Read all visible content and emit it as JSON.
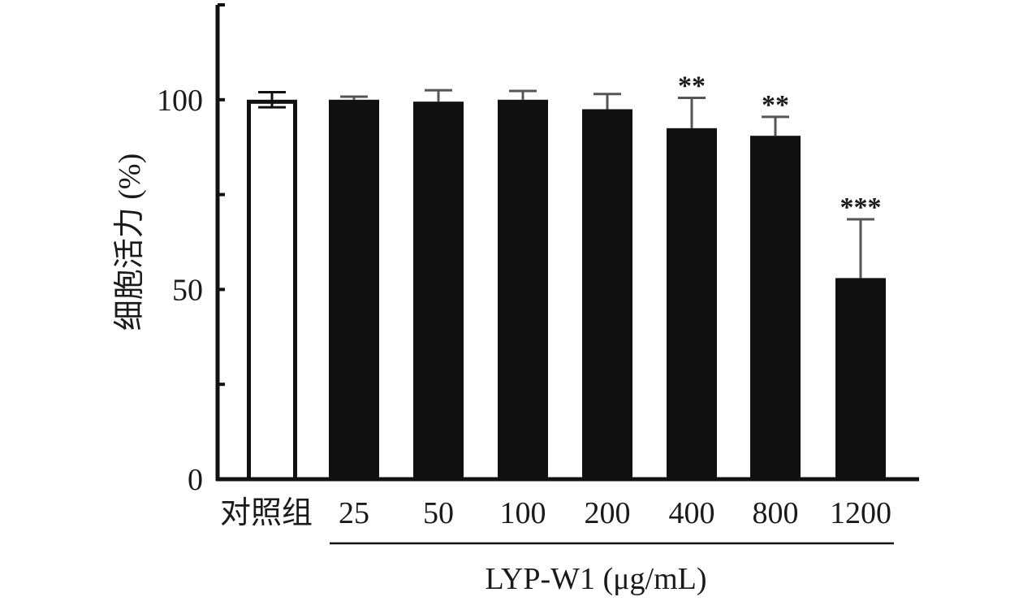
{
  "chart_data": {
    "type": "bar",
    "categories": [
      "对照组",
      "25",
      "50",
      "100",
      "200",
      "400",
      "800",
      "1200"
    ],
    "values": [
      100,
      100,
      99.5,
      100,
      97.5,
      92.5,
      90.5,
      53
    ],
    "errors": [
      2,
      0.8,
      3,
      2.3,
      4,
      8,
      5,
      15.5
    ],
    "significance": [
      "",
      "",
      "",
      "",
      "",
      "**",
      "**",
      "***"
    ],
    "control_index": 0,
    "ylabel": "细胞活力 (%)",
    "group_label": "LYP-W1 (μg/mL)",
    "yticks": [
      0,
      50,
      100
    ],
    "ylim": [
      0,
      125
    ],
    "grid": false,
    "colors": {
      "control_fill": "#ffffff",
      "bar_fill": "#111111",
      "stroke": "#111111",
      "error": "#555555"
    }
  }
}
